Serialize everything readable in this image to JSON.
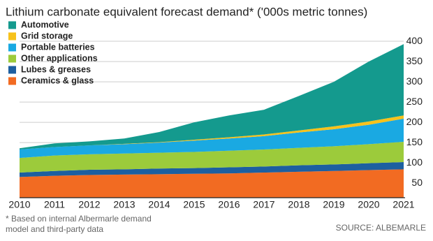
{
  "chart_data": {
    "type": "stacked_area",
    "title": "Lithium carbonate equivalent forecast demand* ('000s metric tonnes)",
    "footnote": [
      "* Based on internal Albermarle demand",
      "model and third-party data"
    ],
    "source": "SOURCE: ALBEMARLE",
    "x": [
      2010,
      2011,
      2012,
      2013,
      2014,
      2015,
      2016,
      2017,
      2018,
      2019,
      2020,
      2021
    ],
    "ylim": [
      14,
      407
    ],
    "yticks": [
      50,
      100,
      150,
      200,
      250,
      300,
      350,
      400
    ],
    "grid": true,
    "legend": "top-left",
    "series": [
      {
        "name": "Automotive",
        "color": "#149a8e",
        "values": [
          3,
          9,
          10,
          13,
          25,
          43,
          54,
          61,
          85,
          110,
          148,
          176
        ]
      },
      {
        "name": "Grid storage",
        "color": "#f7c21b",
        "values": [
          0,
          0,
          0,
          1,
          1,
          2,
          3,
          4,
          5,
          7,
          8,
          8
        ]
      },
      {
        "name": "Portable batteries",
        "color": "#1aa9e2",
        "values": [
          21,
          21,
          22,
          23,
          25,
          28,
          30,
          33,
          38,
          42,
          48,
          57
        ]
      },
      {
        "name": "Other applications",
        "color": "#9ccb3b",
        "values": [
          36,
          38,
          38,
          39,
          39,
          40,
          41,
          42,
          43,
          45,
          47,
          50
        ]
      },
      {
        "name": "Lubes & greases",
        "color": "#1d5fa0",
        "values": [
          11,
          12,
          13,
          13,
          14,
          14,
          15,
          15,
          16,
          16,
          17,
          18
        ]
      },
      {
        "name": "Ceramics & glass",
        "color": "#f26b22",
        "values": [
          65,
          68,
          70,
          71,
          72,
          73,
          74,
          76,
          78,
          80,
          82,
          84
        ]
      }
    ]
  }
}
